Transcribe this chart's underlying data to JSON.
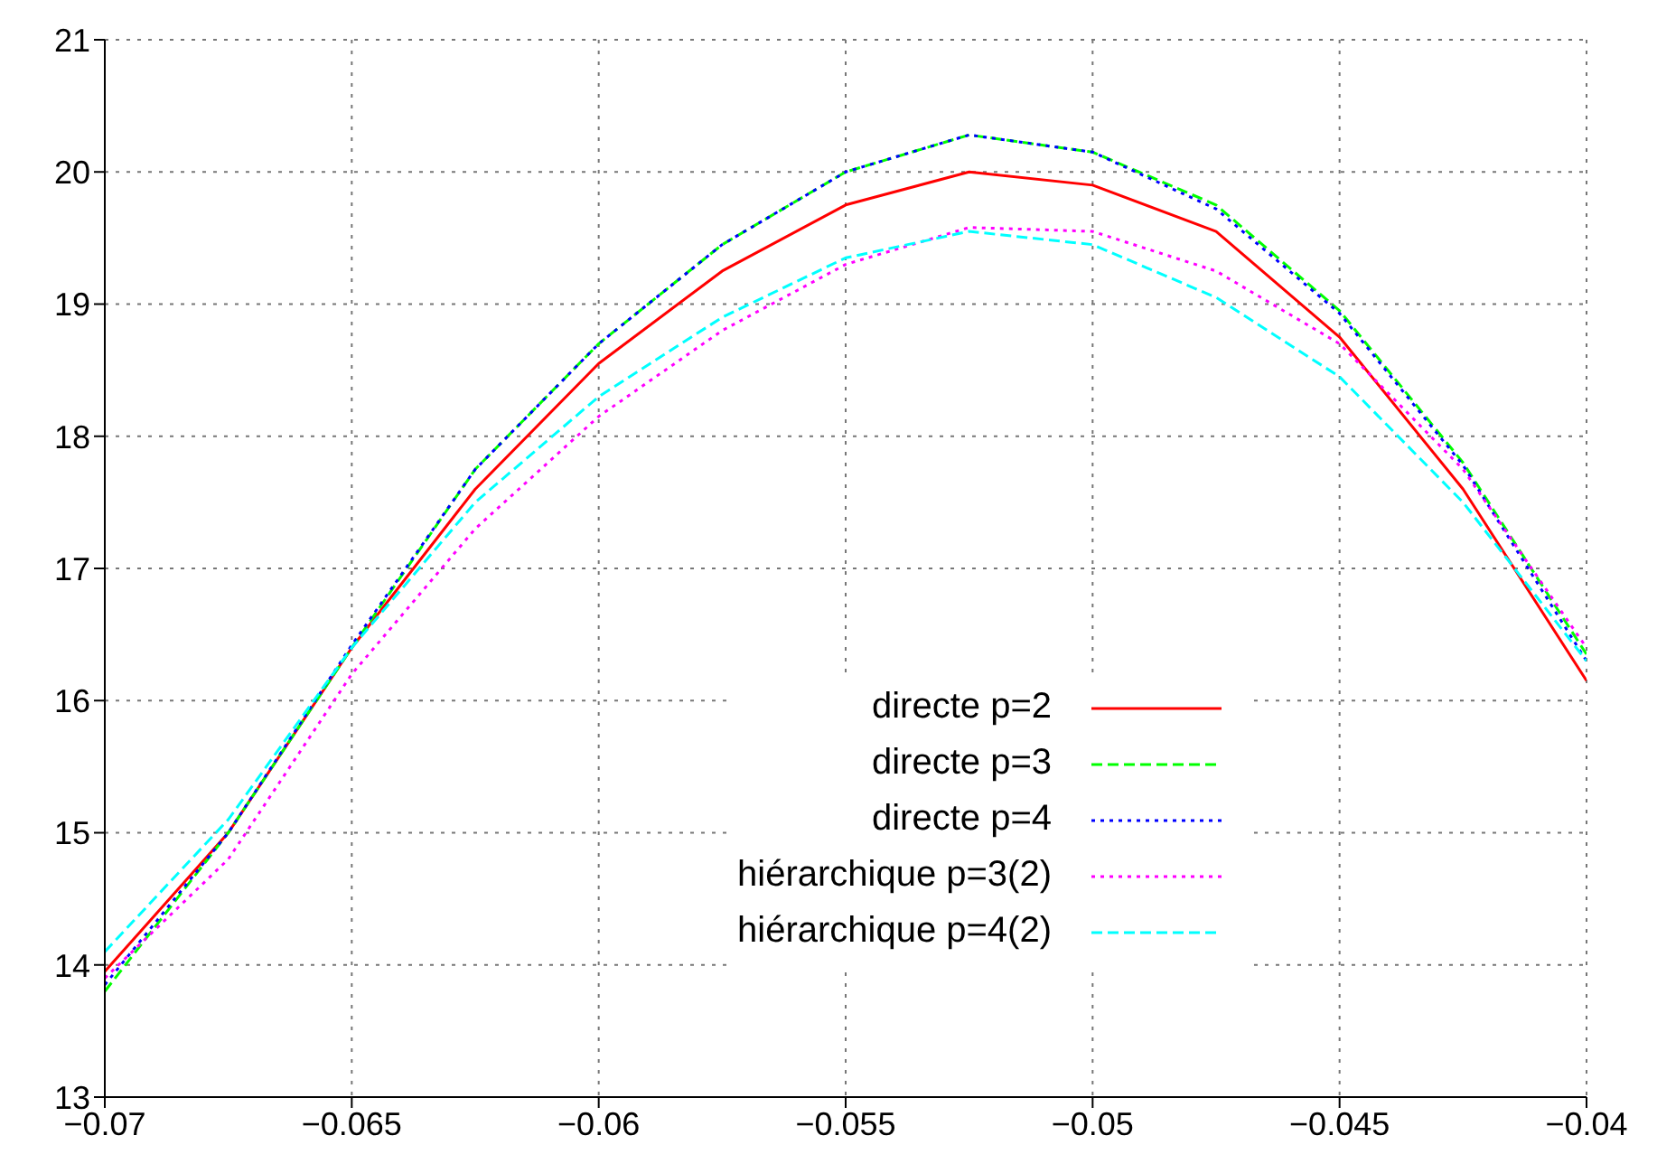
{
  "chart_data": {
    "type": "line",
    "x": [
      -0.07,
      -0.0675,
      -0.065,
      -0.0625,
      -0.06,
      -0.0575,
      -0.055,
      -0.0525,
      -0.05,
      -0.0475,
      -0.045,
      -0.0425,
      -0.04
    ],
    "series": [
      {
        "name": "directe p=2",
        "color": "#ff0000",
        "line_style": "solid",
        "values": [
          13.95,
          15.0,
          16.4,
          17.6,
          18.55,
          19.25,
          19.75,
          20.0,
          19.9,
          19.55,
          18.75,
          17.6,
          16.15
        ]
      },
      {
        "name": "directe p=3",
        "color": "#00ff00",
        "line_style": "dashed",
        "values": [
          13.8,
          15.0,
          16.4,
          17.75,
          18.7,
          19.45,
          20.0,
          20.28,
          20.15,
          19.75,
          18.95,
          17.8,
          16.35
        ]
      },
      {
        "name": "directe p=4",
        "color": "#0000ff",
        "line_style": "dotted",
        "values": [
          13.85,
          15.0,
          16.42,
          17.75,
          18.7,
          19.45,
          20.0,
          20.28,
          20.15,
          19.72,
          18.93,
          17.78,
          16.3
        ]
      },
      {
        "name": "hiérarchique p=3(2)",
        "color": "#ff00ff",
        "line_style": "dotted",
        "values": [
          13.9,
          14.8,
          16.2,
          17.3,
          18.15,
          18.8,
          19.3,
          19.58,
          19.55,
          19.25,
          18.7,
          17.75,
          16.4
        ]
      },
      {
        "name": "hiérarchique p=4(2)",
        "color": "#00ffff",
        "line_style": "dashed",
        "values": [
          14.1,
          15.1,
          16.4,
          17.5,
          18.3,
          18.9,
          19.35,
          19.55,
          19.45,
          19.05,
          18.45,
          17.5,
          16.3
        ]
      }
    ],
    "xlim": [
      -0.07,
      -0.04
    ],
    "xticks": [
      -0.07,
      -0.065,
      -0.06,
      -0.055,
      -0.05,
      -0.045,
      -0.04
    ],
    "ylim": [
      13,
      21
    ],
    "yticks": [
      13,
      14,
      15,
      16,
      17,
      18,
      19,
      20,
      21
    ],
    "grid": true,
    "legend": "bottom right",
    "marker": "none"
  }
}
